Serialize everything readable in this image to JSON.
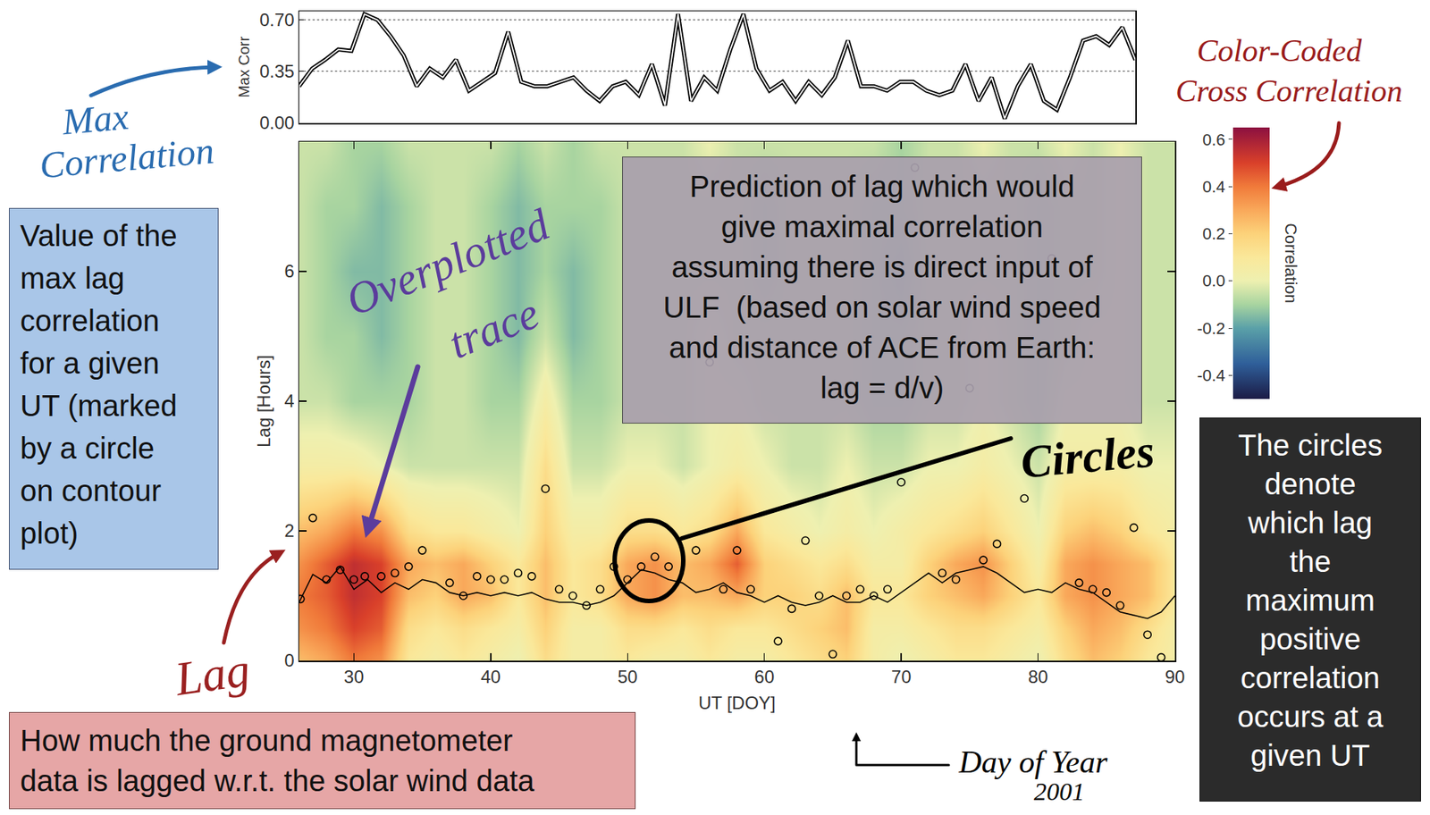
{
  "chart_data": [
    {
      "type": "line",
      "ylabel": "Max Corr",
      "xlim": [
        26,
        90
      ],
      "ylim": [
        0,
        0.76
      ],
      "yticks": [
        {
          "value": 0,
          "label": "0.00"
        },
        0.35,
        {
          "value": 0.7,
          "label": "0.70"
        }
      ],
      "tick_labels": "y",
      "grid": true,
      "color": "#000000",
      "line_style": "double",
      "x": [
        26,
        27,
        28,
        29,
        30,
        31,
        32,
        33,
        34,
        35,
        36,
        37,
        38,
        39,
        40,
        41,
        42,
        43,
        44,
        45,
        46,
        47,
        48,
        49,
        50,
        51,
        52,
        53,
        54,
        55,
        56,
        57,
        58,
        59,
        60,
        61,
        62,
        63,
        64,
        65,
        66,
        67,
        68,
        69,
        70,
        71,
        72,
        73,
        74,
        75,
        76,
        77,
        78,
        79,
        80,
        81,
        82,
        83,
        84,
        85,
        86,
        87,
        88,
        89,
        90
      ],
      "values": [
        0.25,
        0.37,
        0.43,
        0.5,
        0.49,
        0.74,
        0.7,
        0.59,
        0.46,
        0.25,
        0.37,
        0.31,
        0.43,
        0.22,
        0.28,
        0.34,
        0.62,
        0.28,
        0.25,
        0.25,
        0.28,
        0.31,
        0.22,
        0.15,
        0.25,
        0.28,
        0.19,
        0.4,
        0.12,
        0.74,
        0.15,
        0.31,
        0.22,
        0.5,
        0.74,
        0.37,
        0.22,
        0.28,
        0.15,
        0.28,
        0.19,
        0.31,
        0.56,
        0.25,
        0.25,
        0.22,
        0.28,
        0.28,
        0.22,
        0.19,
        0.22,
        0.4,
        0.15,
        0.31,
        0.03,
        0.25,
        0.4,
        0.15,
        0.09,
        0.31,
        0.56,
        0.59,
        0.53,
        0.65,
        0.43
      ]
    },
    {
      "type": "heatmap",
      "xlabel": "UT [DOY]",
      "ylabel": "Lag [Hours]",
      "xlim": [
        26,
        90
      ],
      "xticks": [
        30,
        40,
        50,
        60,
        70,
        80,
        90
      ],
      "ylim": [
        0,
        8
      ],
      "yticks": [
        0,
        2,
        4,
        6
      ],
      "grid": false,
      "x": [
        26,
        28,
        30,
        32,
        34,
        36,
        38,
        40,
        42,
        44,
        46,
        48,
        50,
        52,
        54,
        56,
        58,
        60,
        62,
        64,
        66,
        68,
        70,
        72,
        74,
        76,
        78,
        80,
        82,
        84,
        86,
        88,
        90
      ],
      "y": [
        0,
        0.5,
        1,
        1.5,
        2,
        3,
        4,
        5,
        6,
        7,
        8
      ],
      "z": [
        [
          0.25,
          0.3,
          0.4,
          0.35,
          0.1,
          0.05,
          0.1,
          0.05,
          0.0,
          0.15,
          0.05,
          0.05,
          0.1,
          0.05,
          0.05,
          0.1,
          0.05,
          0.05,
          0.1,
          0.15,
          0.2,
          0.05,
          0.0,
          0.05,
          0.1,
          0.1,
          0.05,
          0.0,
          0.15,
          0.25,
          0.2,
          0.1,
          0.05
        ],
        [
          0.35,
          0.4,
          0.5,
          0.45,
          0.15,
          0.1,
          0.15,
          0.1,
          0.05,
          0.2,
          0.05,
          0.05,
          0.15,
          0.15,
          0.1,
          0.15,
          0.1,
          0.1,
          0.15,
          0.2,
          0.25,
          0.05,
          0.05,
          0.1,
          0.15,
          0.15,
          0.1,
          0.05,
          0.2,
          0.3,
          0.25,
          0.15,
          0.05
        ],
        [
          0.4,
          0.45,
          0.55,
          0.5,
          0.25,
          0.2,
          0.3,
          0.25,
          0.1,
          0.25,
          0.1,
          0.15,
          0.3,
          0.35,
          0.25,
          0.25,
          0.3,
          0.2,
          0.2,
          0.15,
          0.25,
          0.1,
          0.1,
          0.2,
          0.25,
          0.3,
          0.2,
          0.1,
          0.3,
          0.35,
          0.3,
          0.25,
          0.1
        ],
        [
          0.35,
          0.45,
          0.55,
          0.5,
          0.3,
          0.25,
          0.3,
          0.2,
          0.1,
          0.25,
          0.1,
          0.15,
          0.3,
          0.35,
          0.25,
          0.3,
          0.45,
          0.2,
          0.15,
          0.1,
          0.15,
          0.05,
          0.05,
          0.2,
          0.3,
          0.35,
          0.2,
          0.05,
          0.3,
          0.35,
          0.3,
          0.25,
          0.1
        ],
        [
          0.25,
          0.3,
          0.4,
          0.35,
          0.15,
          0.1,
          0.1,
          0.05,
          0.0,
          0.2,
          0.05,
          0.05,
          0.15,
          0.15,
          0.1,
          0.15,
          0.3,
          0.1,
          0.05,
          0.0,
          0.05,
          0.0,
          0.05,
          0.1,
          0.15,
          0.2,
          0.1,
          0.0,
          0.2,
          0.25,
          0.2,
          0.1,
          0.05
        ],
        [
          0.05,
          0.05,
          0.05,
          0.0,
          -0.05,
          -0.05,
          -0.05,
          -0.05,
          -0.05,
          0.15,
          -0.05,
          -0.05,
          0.0,
          0.0,
          -0.05,
          0.0,
          0.05,
          0.0,
          -0.05,
          -0.05,
          0.0,
          -0.05,
          -0.05,
          0.0,
          0.0,
          0.05,
          0.0,
          -0.05,
          0.05,
          0.05,
          0.05,
          0.0,
          0.0
        ],
        [
          -0.05,
          -0.05,
          -0.1,
          -0.1,
          -0.1,
          -0.05,
          -0.05,
          -0.1,
          -0.1,
          0.05,
          -0.1,
          -0.1,
          -0.05,
          -0.05,
          -0.05,
          0.0,
          0.0,
          -0.05,
          -0.05,
          -0.05,
          -0.05,
          -0.1,
          -0.1,
          -0.05,
          -0.05,
          0.0,
          -0.05,
          -0.1,
          0.0,
          0.0,
          0.0,
          -0.05,
          -0.05
        ],
        [
          -0.05,
          -0.1,
          -0.1,
          -0.15,
          -0.1,
          -0.05,
          -0.05,
          -0.1,
          -0.15,
          -0.05,
          -0.15,
          -0.1,
          -0.05,
          -0.05,
          -0.05,
          0.0,
          -0.05,
          -0.05,
          -0.05,
          -0.05,
          -0.05,
          -0.1,
          -0.1,
          -0.05,
          -0.05,
          0.0,
          -0.05,
          -0.1,
          -0.05,
          0.0,
          0.0,
          -0.05,
          -0.05
        ],
        [
          -0.05,
          -0.1,
          -0.15,
          -0.15,
          -0.1,
          -0.05,
          -0.05,
          -0.1,
          -0.15,
          -0.1,
          -0.15,
          -0.1,
          -0.05,
          -0.05,
          -0.05,
          -0.05,
          -0.05,
          -0.1,
          -0.05,
          -0.05,
          -0.05,
          -0.1,
          -0.15,
          -0.05,
          -0.05,
          -0.05,
          -0.05,
          -0.1,
          -0.05,
          -0.05,
          0.0,
          -0.05,
          -0.05
        ],
        [
          -0.05,
          -0.1,
          -0.1,
          -0.15,
          -0.1,
          -0.05,
          -0.05,
          -0.1,
          -0.15,
          -0.1,
          -0.1,
          -0.1,
          -0.05,
          -0.05,
          -0.05,
          -0.05,
          -0.05,
          -0.1,
          -0.05,
          -0.05,
          -0.05,
          -0.1,
          -0.1,
          -0.05,
          -0.05,
          -0.05,
          -0.05,
          -0.1,
          -0.05,
          -0.05,
          0.0,
          -0.05,
          -0.05
        ],
        [
          -0.05,
          -0.05,
          -0.1,
          -0.1,
          -0.05,
          -0.05,
          -0.05,
          -0.05,
          -0.1,
          -0.05,
          -0.1,
          -0.05,
          -0.05,
          -0.05,
          -0.05,
          0.0,
          -0.05,
          -0.05,
          -0.05,
          -0.05,
          -0.05,
          -0.05,
          -0.1,
          -0.05,
          -0.05,
          0.0,
          -0.05,
          -0.05,
          0.0,
          -0.05,
          0.0,
          -0.05,
          -0.05
        ]
      ],
      "colorbar": {
        "title": "Correlation",
        "range": [
          -0.5,
          0.65
        ],
        "ticks": [
          -0.4,
          -0.2,
          {
            "value": 0,
            "label": "0.0"
          },
          0.2,
          0.4,
          0.6
        ]
      },
      "series": [
        {
          "type": "line",
          "color": "#000000",
          "x": [
            26,
            27,
            28,
            29,
            30,
            31,
            32,
            33,
            34,
            35,
            36,
            37,
            38,
            39,
            40,
            41,
            42,
            43,
            44,
            45,
            46,
            47,
            48,
            49,
            50,
            51,
            52,
            53,
            54,
            55,
            56,
            57,
            58,
            59,
            60,
            61,
            62,
            63,
            64,
            65,
            66,
            67,
            68,
            69,
            70,
            71,
            72,
            73,
            74,
            75,
            76,
            77,
            78,
            79,
            80,
            81,
            82,
            83,
            84,
            85,
            86,
            87,
            88,
            89,
            90
          ],
          "values": [
            0.9,
            1.33,
            1.2,
            1.45,
            1.1,
            1.25,
            1.05,
            1.2,
            1.1,
            1.25,
            1.2,
            1.05,
            1.0,
            1.05,
            1.0,
            1.05,
            1.0,
            1.05,
            0.95,
            0.9,
            0.9,
            0.85,
            0.9,
            1.0,
            1.2,
            1.4,
            1.35,
            1.25,
            1.2,
            1.05,
            1.1,
            1.2,
            1.05,
            1.0,
            0.9,
            1.0,
            0.9,
            0.85,
            0.9,
            1.0,
            0.9,
            0.9,
            1.0,
            0.9,
            1.05,
            1.2,
            1.35,
            1.2,
            1.35,
            1.4,
            1.45,
            1.35,
            1.2,
            1.05,
            1.1,
            1.05,
            1.2,
            1.1,
            1.05,
            0.9,
            0.75,
            0.7,
            0.65,
            0.75,
            1.0
          ]
        },
        {
          "type": "scatter",
          "marker": "circle",
          "color": "#000000",
          "x": [
            26.1,
            27,
            28,
            29,
            30,
            30.8,
            32,
            33,
            34,
            35,
            37,
            38,
            39,
            40,
            41,
            42,
            43,
            44,
            45,
            46,
            47,
            48,
            49,
            50,
            51,
            52,
            53,
            55,
            56,
            57,
            58,
            59,
            61,
            62,
            63,
            64,
            65,
            66,
            67,
            68,
            69,
            70,
            71,
            73,
            74,
            75,
            76,
            77,
            79,
            81,
            83,
            84,
            85,
            86,
            87,
            88,
            89
          ],
          "values": [
            0.95,
            2.2,
            1.25,
            1.4,
            1.25,
            1.3,
            1.3,
            1.35,
            1.45,
            1.7,
            1.2,
            1.0,
            1.3,
            1.25,
            1.25,
            1.35,
            1.3,
            2.65,
            1.1,
            1.0,
            0.85,
            1.1,
            1.45,
            1.25,
            1.45,
            1.6,
            1.45,
            1.7,
            4.6,
            1.1,
            1.7,
            1.1,
            0.3,
            0.8,
            1.85,
            1.0,
            0.1,
            1.0,
            1.1,
            1.0,
            1.1,
            2.75,
            7.6,
            1.35,
            1.25,
            4.2,
            1.55,
            1.8,
            2.5,
            6.2,
            1.2,
            1.1,
            1.05,
            0.85,
            2.05,
            0.4,
            0.05
          ]
        }
      ]
    }
  ],
  "annotations": {
    "max_correlation": [
      "Max",
      "Correlation"
    ],
    "overplotted_trace": [
      "Overplotted",
      "trace"
    ],
    "lag": [
      "Lag"
    ],
    "circles": [
      "Circles"
    ],
    "day_of_year": [
      "Day of Year",
      "2001"
    ],
    "color_coded": [
      "Color-Coded",
      "Cross Correlation"
    ],
    "max_lag_box": [
      "Value of the",
      "max lag",
      "correlation",
      "for a given",
      "UT (marked",
      "by a circle",
      "on contour",
      "plot)"
    ],
    "prediction_box": [
      "Prediction of lag which would",
      "give maximal correlation",
      "assuming there is direct input of",
      "ULF  (based on solar wind speed",
      "and distance of ACE from Earth:",
      "lag = d/v)"
    ],
    "circles_box": [
      "The circles",
      "denote",
      "which lag",
      "the",
      "maximum",
      "positive",
      "correlation",
      "occurs at a",
      "given UT"
    ],
    "lag_box": [
      "How much the ground magnetometer",
      "data is lagged w.r.t. the solar wind data"
    ]
  }
}
